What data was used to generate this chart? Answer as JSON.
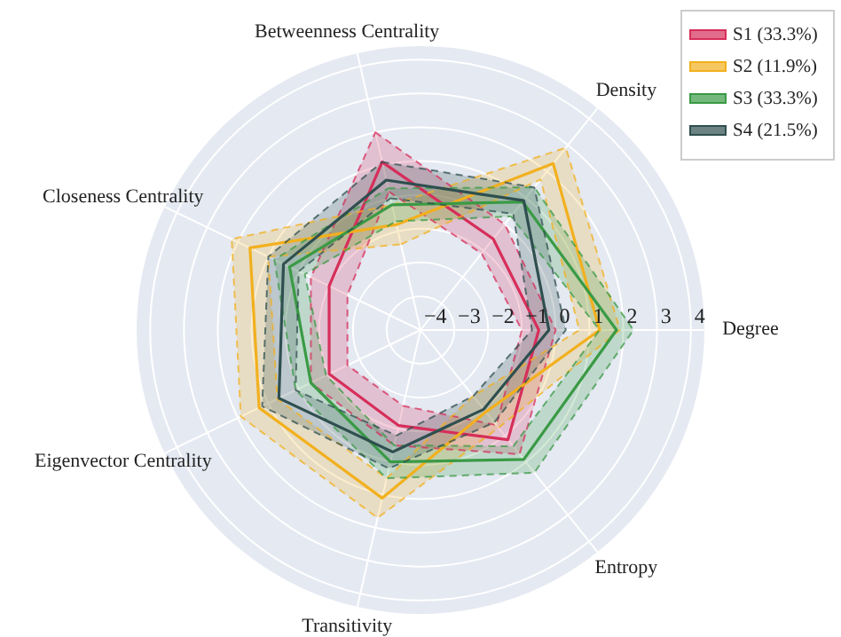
{
  "chart_data": {
    "type": "radar",
    "categories": [
      "Betweenness Centrality",
      "Density",
      "Degree",
      "Entropy",
      "Transitivity",
      "Eigenvector Centrality",
      "Closeness Centrality"
    ],
    "series": [
      {
        "name": "S1 (33.3%)",
        "color": "#d62e5a",
        "values": [
          1.1,
          -0.55,
          -0.5,
          0.15,
          -1.1,
          -1.0,
          -1.0
        ]
      },
      {
        "color": "#d62e5a",
        "line_style": "dashed",
        "values": [
          2.0,
          0.0,
          0.0,
          0.7,
          -0.5,
          -0.4,
          -0.4
        ]
      },
      {
        "color": "#d62e5a",
        "line_style": "dashed",
        "values": [
          0.2,
          -1.1,
          -1.0,
          -0.4,
          -1.7,
          -1.6,
          -1.6
        ]
      },
      {
        "name": "S2 (11.9%)",
        "color": "#f2b01e",
        "values": [
          -0.8,
          2.3,
          1.3,
          -0.9,
          1.1,
          1.3,
          1.6
        ]
      },
      {
        "color": "#f2b01e",
        "line_style": "dashed",
        "values": [
          -0.2,
          2.9,
          1.9,
          -0.3,
          1.7,
          1.9,
          2.2
        ]
      },
      {
        "color": "#f2b01e",
        "line_style": "dashed",
        "values": [
          -1.4,
          1.7,
          0.7,
          -1.5,
          0.5,
          0.7,
          1.0
        ]
      },
      {
        "name": "S3 (33.3%)",
        "color": "#3a9a45",
        "values": [
          -0.2,
          0.85,
          1.8,
          0.9,
          0.0,
          -0.4,
          0.3
        ]
      },
      {
        "color": "#3a9a45",
        "line_style": "dashed",
        "values": [
          0.3,
          1.4,
          2.3,
          1.4,
          0.5,
          0.1,
          0.8
        ]
      },
      {
        "color": "#3a9a45",
        "line_style": "dashed",
        "values": [
          -0.7,
          0.3,
          1.3,
          0.4,
          -0.5,
          -0.9,
          -0.2
        ]
      },
      {
        "name": "S4 (21.5%)",
        "color": "#2f4f4f",
        "values": [
          0.55,
          0.9,
          -0.2,
          -1.0,
          -0.3,
          0.65,
          0.5
        ]
      },
      {
        "color": "#2f4f4f",
        "line_style": "dashed",
        "values": [
          1.1,
          1.4,
          0.3,
          -0.5,
          0.2,
          1.2,
          1.0
        ]
      },
      {
        "color": "#2f4f4f",
        "line_style": "dashed",
        "values": [
          0.0,
          0.4,
          -0.7,
          -1.5,
          -0.8,
          0.1,
          0.0
        ]
      }
    ],
    "ylim": [
      -4,
      4.4
    ],
    "yticks": [
      -4,
      -3,
      -2,
      -1,
      0,
      1,
      2,
      3,
      4
    ],
    "grid": true,
    "legend": "top right"
  }
}
